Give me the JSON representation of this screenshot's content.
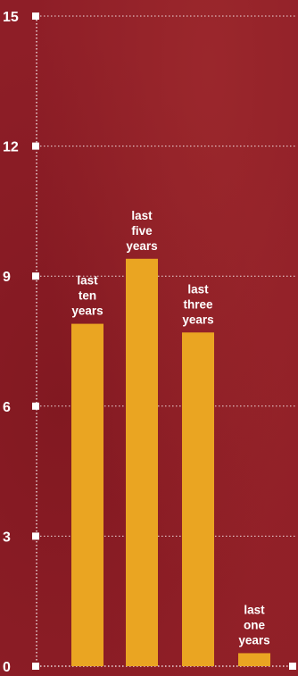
{
  "chart_data": {
    "type": "bar",
    "categories": [
      "last ten years",
      "last five years",
      "last three years",
      "last one years"
    ],
    "category_label_lines": [
      [
        "last",
        "ten",
        "years"
      ],
      [
        "last",
        "five",
        "years"
      ],
      [
        "last",
        "three",
        "years"
      ],
      [
        "last",
        "one",
        "years"
      ]
    ],
    "values": [
      7.9,
      9.4,
      7.7,
      0.3
    ],
    "y_ticks": [
      0,
      3,
      6,
      9,
      12,
      15
    ],
    "ylim": [
      0,
      15
    ],
    "grid": true,
    "bar_color": "#eaa522",
    "axis_color": "#ffffff",
    "background_color": "#8e1e27"
  }
}
